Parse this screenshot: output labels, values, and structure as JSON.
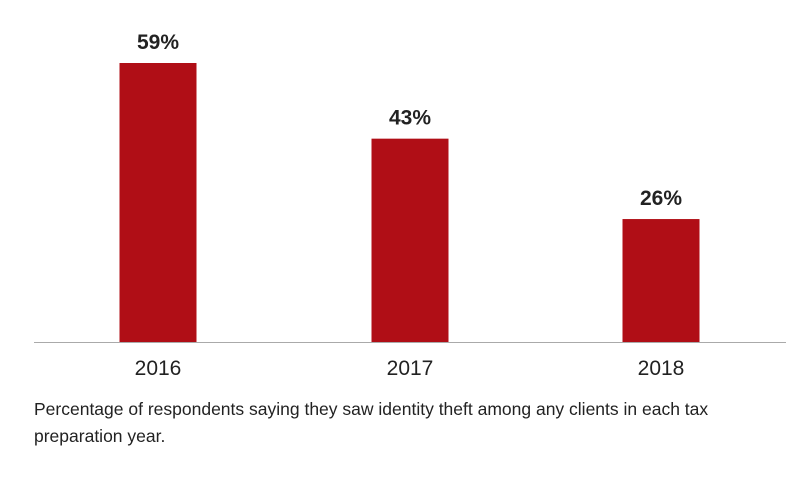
{
  "chart_data": {
    "type": "bar",
    "categories": [
      "2016",
      "2017",
      "2018"
    ],
    "values": [
      59,
      43,
      26
    ],
    "value_labels": [
      "59%",
      "43%",
      "26%"
    ],
    "ylim": [
      0,
      59
    ],
    "title": "",
    "xlabel": "",
    "ylabel": "",
    "grid": false,
    "bar_color": "#b00e16",
    "axis_color": "#aaaaaa"
  },
  "caption": "Percentage of respondents saying they saw identity theft among any clients in each tax preparation year."
}
